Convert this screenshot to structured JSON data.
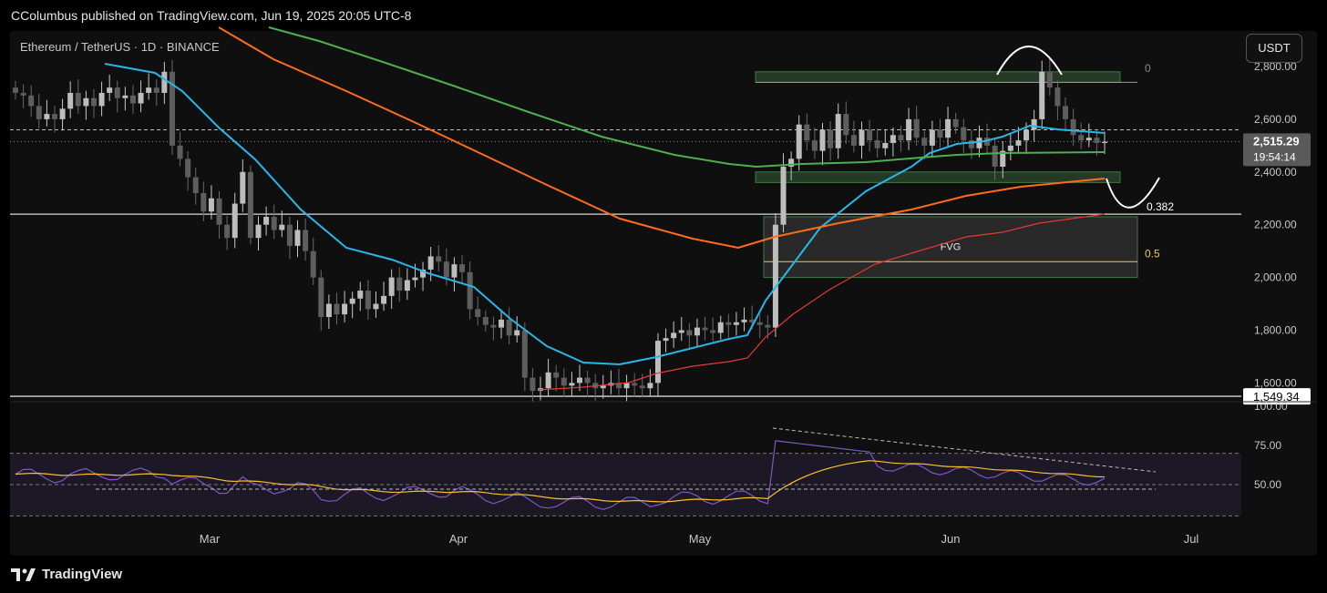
{
  "header": {
    "published_text": "CColumbus published on TradingView.com, Jun 19, 2025 20:05 UTC-8"
  },
  "legend": {
    "symbol_text": "Ethereum / TetherUS · 1D · BINANCE"
  },
  "currency_button": "USDT",
  "footer": {
    "brand": "TradingView",
    "logo_icon": "tradingview-logo-icon"
  },
  "price_badge": {
    "price": "2,515.29",
    "countdown": "19:54:14"
  },
  "low_badge": "1,549.34",
  "chart_data": [
    {
      "type": "candlestick",
      "title": "",
      "series": [
        {
          "name": "price",
          "values_note": ""
        }
      ],
      "x_tick_labels": [
        "Mar",
        "Apr",
        "May",
        "Jun",
        "Jul"
      ],
      "y_tick_labels": [
        "2,800.00",
        "2,600.00",
        "2,400.00",
        "2,200.00",
        "2,000.00",
        "1,800.00",
        "1,600.00"
      ],
      "ylim": [
        1549,
        2900
      ],
      "current_price": 2515.29,
      "horizontal_levels": [
        {
          "value": 2240,
          "style": "solid"
        },
        {
          "value": 1549.34,
          "style": "solid"
        },
        {
          "value": 2560,
          "style": "dashed"
        }
      ],
      "fib_labels": [
        {
          "label": "0",
          "value": 2740
        },
        {
          "label": "0.382",
          "value": 2240
        },
        {
          "label": "0.5",
          "value": 2090
        }
      ],
      "zones": [
        {
          "label": "",
          "from": 2740,
          "to": 2780,
          "color": "#2e5e34"
        },
        {
          "label": "",
          "from": 2360,
          "to": 2400,
          "color": "#2e5e34"
        },
        {
          "label": "FVG",
          "from": 2000,
          "to": 2230,
          "color": "#2e5e34"
        }
      ],
      "colors": {
        "ema_blue": "#29b6e8",
        "ema_green": "#4caf50",
        "ema_orange": "#ff6d1a",
        "ema_red": "#e53935",
        "candle_up": "#bdbdbd",
        "candle_down": "#5e5e5e"
      }
    },
    {
      "type": "line",
      "title": "",
      "y_tick_labels": [
        "100.00",
        "75.00",
        "50.00"
      ],
      "ylim": [
        25,
        100
      ],
      "bands": [
        70,
        30
      ],
      "colors": {
        "rsi": "#7e57c2",
        "signal": "#fbc02d"
      }
    }
  ]
}
